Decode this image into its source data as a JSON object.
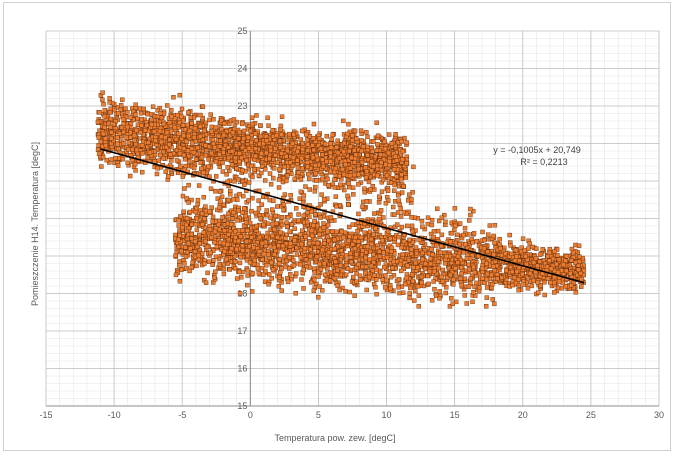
{
  "chart_data": {
    "type": "scatter",
    "title": "",
    "xlabel": "Temperatura pow. zew. [degC]",
    "ylabel": "Pomieszczenie H14. Temperatura [degC]",
    "xlim": [
      -15,
      30
    ],
    "ylim": [
      15,
      25
    ],
    "x_ticks": [
      -15,
      -10,
      -5,
      0,
      5,
      10,
      15,
      20,
      25,
      30
    ],
    "x_tick_labels": [
      "-15",
      "-10",
      "-5",
      "0",
      "5",
      "10",
      "15",
      "20",
      "25",
      "30"
    ],
    "y_ticks": [
      15,
      16,
      17,
      18,
      19,
      20,
      21,
      22,
      23,
      24,
      25
    ],
    "y_tick_labels": [
      "15",
      "16",
      "17",
      "18",
      "19",
      "20",
      "21",
      "22",
      "23",
      "24",
      "25"
    ],
    "grid": true,
    "legend": "none",
    "marker_color": "#ed7d31",
    "marker_edge_color": "#5a2a0a",
    "trendline": {
      "type": "linear",
      "slope": -0.1005,
      "intercept": 20.749,
      "x_range": [
        -11,
        24.5
      ],
      "color": "#000000",
      "equation_label": "y = -0,1005x + 20,749",
      "r2_label": "R² = 0,2213"
    },
    "point_clusters": [
      {
        "name": "upper cold band",
        "x_range": [
          -11.2,
          11.5
        ],
        "y_center_at_xmin": 22.3,
        "y_center_at_xmax": 21.5,
        "y_spread": 0.55,
        "density": "high"
      },
      {
        "name": "lower band",
        "x_range": [
          -5.5,
          24.5
        ],
        "y_center_at_xmin": 19.5,
        "y_center_at_xmax": 18.6,
        "y_spread": 0.7,
        "density": "high"
      },
      {
        "name": "min outliers",
        "x_range": [
          -3,
          12
        ],
        "y_min": 17.7
      }
    ]
  }
}
